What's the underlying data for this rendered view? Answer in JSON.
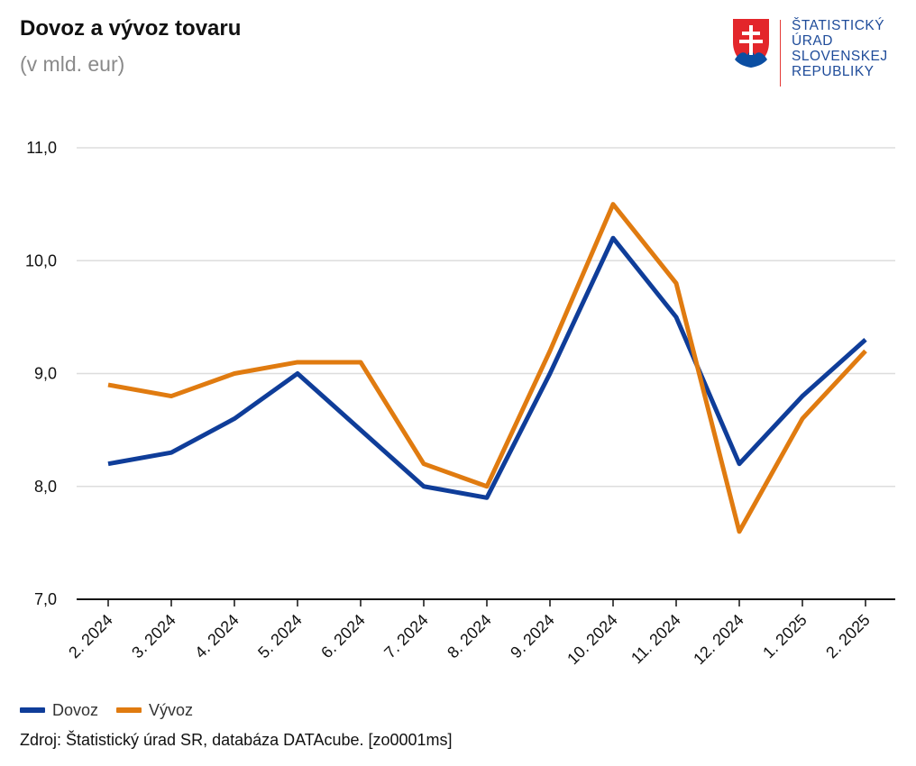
{
  "title": "Dovoz a vývoz tovaru",
  "subtitle": "(v mld. eur)",
  "logo": {
    "lines": [
      "ŠTATISTICKÝ",
      "ÚRAD",
      "SLOVENSKEJ",
      "REPUBLIKY"
    ],
    "text_color": "#1f4c9a",
    "shield_red": "#e3262b",
    "shield_blue": "#0b4ea2"
  },
  "source": "Zdroj: Štatistický úrad SR, databáza DATAcube. [zo0001ms]",
  "chart_data": {
    "type": "line",
    "categories": [
      "2. 2024",
      "3. 2024",
      "4. 2024",
      "5. 2024",
      "6. 2024",
      "7. 2024",
      "8. 2024",
      "9. 2024",
      "10. 2024",
      "11. 2024",
      "12. 2024",
      "1. 2025",
      "2. 2025"
    ],
    "series": [
      {
        "name": "Dovoz",
        "color": "#0f3d99",
        "values": [
          8.2,
          8.3,
          8.6,
          9.0,
          8.5,
          8.0,
          7.9,
          9.0,
          10.2,
          9.5,
          8.2,
          8.8,
          9.3
        ]
      },
      {
        "name": "Vývoz",
        "color": "#e07b10",
        "values": [
          8.9,
          8.8,
          9.0,
          9.1,
          9.1,
          8.2,
          8.0,
          9.2,
          10.5,
          9.8,
          7.6,
          8.6,
          9.2
        ]
      }
    ],
    "y_ticks": [
      "11,0",
      "10,0",
      "9,0",
      "8,0",
      "7,0"
    ],
    "ylim": [
      7.0,
      11.0
    ],
    "grid": true,
    "legend": "bottom-left"
  }
}
